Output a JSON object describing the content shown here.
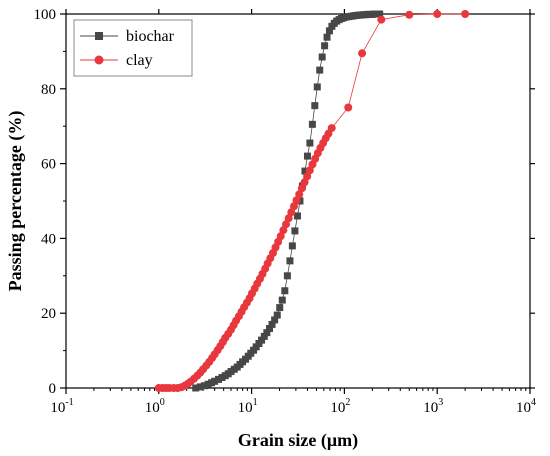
{
  "chart_data": {
    "type": "scatter",
    "xlabel": "Grain size (μm)",
    "ylabel": "Passing percentage (%)",
    "x_scale": "log",
    "xlim": [
      0.1,
      10000
    ],
    "ylim": [
      0,
      100
    ],
    "x_ticks": [
      {
        "base": "10",
        "exp": "-1",
        "value": 0.1
      },
      {
        "base": "10",
        "exp": "0",
        "value": 1
      },
      {
        "base": "10",
        "exp": "1",
        "value": 10
      },
      {
        "base": "10",
        "exp": "2",
        "value": 100
      },
      {
        "base": "10",
        "exp": "3",
        "value": 1000
      },
      {
        "base": "10",
        "exp": "4",
        "value": 10000
      }
    ],
    "y_ticks": [
      "0",
      "20",
      "40",
      "60",
      "80",
      "100"
    ],
    "grid": false,
    "legend_position": "top-left",
    "series": [
      {
        "name": "biochar",
        "marker": "square",
        "color": "#474747",
        "x": [
          2.5,
          2.8,
          3.1,
          3.4,
          3.7,
          4.0,
          4.4,
          4.8,
          5.2,
          5.6,
          6.0,
          6.5,
          7.0,
          7.5,
          8.0,
          8.6,
          9.2,
          9.8,
          10.5,
          11.2,
          12.0,
          12.8,
          13.7,
          14.6,
          15.6,
          16.6,
          17.7,
          18.9,
          20.1,
          21.4,
          22.8,
          24.3,
          25.9,
          27.5,
          29.3,
          31.2,
          33.2,
          35.3,
          37.6,
          40.0,
          42.5,
          45.2,
          48.0,
          51.0,
          54.2,
          57.6,
          61.2,
          65.0,
          69.0,
          73.3,
          77.8,
          82.6,
          87.7,
          93.1,
          98.8,
          104.9,
          111.3,
          118.1,
          125.3,
          133.0,
          141.1,
          149.7,
          158.8,
          168.5,
          178.7,
          189.5,
          201.0,
          213.2,
          226.1,
          239.8
        ],
        "y": [
          0.0,
          0.3,
          0.6,
          1.0,
          1.4,
          1.8,
          2.3,
          2.8,
          3.3,
          3.8,
          4.4,
          5.0,
          5.6,
          6.3,
          7.0,
          7.7,
          8.5,
          9.3,
          10.1,
          11.0,
          11.9,
          12.8,
          13.8,
          14.8,
          15.9,
          17.0,
          18.2,
          19.5,
          21.5,
          23.5,
          26.0,
          30.0,
          34.0,
          38.0,
          42.0,
          46.0,
          50.0,
          54.0,
          58.0,
          62.0,
          65.5,
          70.5,
          75.5,
          80.5,
          85.0,
          88.5,
          91.5,
          93.8,
          95.5,
          96.7,
          97.5,
          98.1,
          98.5,
          98.8,
          99.0,
          99.2,
          99.3,
          99.4,
          99.5,
          99.6,
          99.7,
          99.7,
          99.8,
          99.8,
          99.9,
          99.9,
          99.9,
          100.0,
          100.0,
          100.0
        ]
      },
      {
        "name": "clay",
        "marker": "circle",
        "color": "#e8383d",
        "x": [
          1.0,
          1.1,
          1.2,
          1.3,
          1.45,
          1.6,
          1.75,
          1.9,
          2.05,
          2.2,
          2.4,
          2.6,
          2.8,
          3.0,
          3.25,
          3.5,
          3.75,
          4.0,
          4.3,
          4.6,
          4.9,
          5.2,
          5.6,
          6.0,
          6.4,
          6.8,
          7.3,
          7.8,
          8.3,
          8.9,
          9.5,
          10.1,
          10.8,
          11.5,
          12.3,
          13.1,
          14.0,
          14.9,
          15.9,
          17.0,
          18.1,
          19.3,
          20.6,
          22.0,
          23.5,
          25.1,
          26.8,
          28.6,
          30.5,
          32.6,
          34.8,
          37.2,
          39.7,
          42.4,
          45.3,
          48.4,
          51.7,
          55.2,
          59.0,
          63.0,
          67.3,
          73.0,
          110.0,
          155.0,
          250.0,
          500.0,
          1000.0,
          2000.0
        ],
        "y": [
          0.0,
          0.0,
          0.0,
          0.0,
          0.0,
          0.0,
          0.2,
          0.6,
          1.1,
          1.7,
          2.5,
          3.3,
          4.1,
          5.0,
          6.0,
          7.0,
          8.0,
          9.0,
          10.1,
          11.2,
          12.3,
          13.4,
          14.5,
          15.6,
          16.8,
          18.0,
          19.2,
          20.4,
          21.6,
          22.8,
          24.0,
          25.3,
          26.6,
          27.9,
          29.2,
          30.5,
          31.9,
          33.3,
          34.7,
          36.1,
          37.6,
          39.1,
          40.6,
          42.2,
          43.8,
          45.4,
          47.0,
          48.6,
          50.2,
          51.8,
          53.4,
          55.0,
          56.6,
          58.2,
          59.8,
          61.3,
          62.8,
          64.2,
          65.5,
          66.8,
          68.0,
          69.5,
          75.0,
          89.5,
          98.5,
          99.8,
          100.0,
          100.0
        ]
      }
    ]
  },
  "colors": {
    "biochar": "#474747",
    "clay": "#e8383d",
    "axis": "#000000",
    "legend_border": "#888888"
  }
}
